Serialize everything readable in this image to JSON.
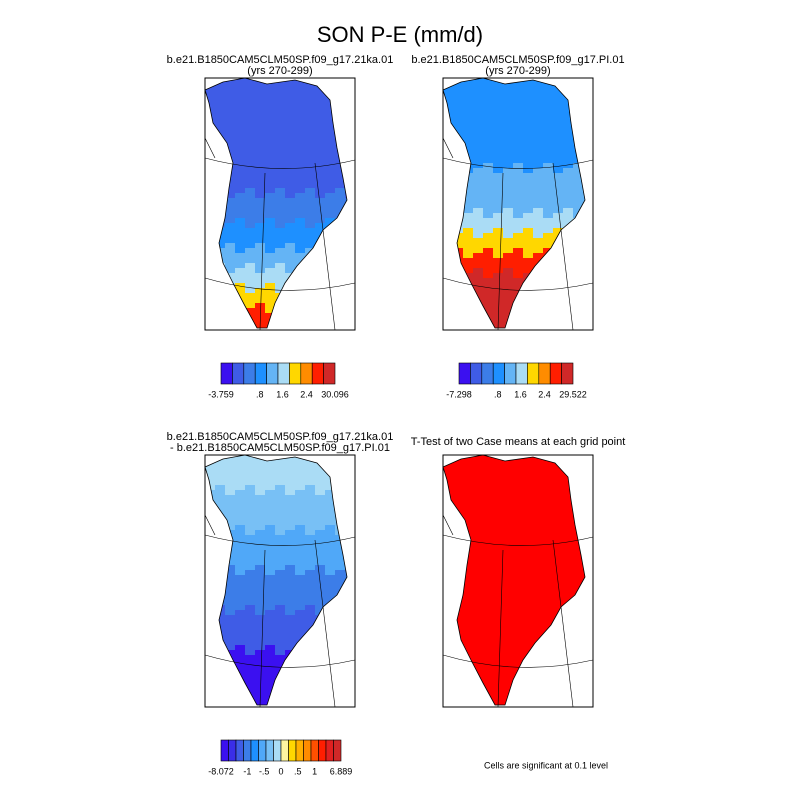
{
  "title": "SON P-E (mm/d)",
  "panels": [
    {
      "title": "b.e21.B1850CAM5CLM50SP.f09_g17.21ka.01",
      "subtitle": "(yrs 270-299)",
      "colorbar": {
        "colors": [
          "#3b10f0",
          "#3f5ce6",
          "#3c7de8",
          "#1e90ff",
          "#64b4f5",
          "#aadcf5",
          "#ffd700",
          "#ff8c00",
          "#ff1e00",
          "#d02828"
        ],
        "labels": [
          "-3.759",
          ".8",
          "1.6",
          "2.4",
          "30.096"
        ]
      }
    },
    {
      "title": "b.e21.B1850CAM5CLM50SP.f09_g17.PI.01",
      "subtitle": "(yrs 270-299)",
      "colorbar": {
        "colors": [
          "#3b10f0",
          "#3f5ce6",
          "#3c7de8",
          "#1e90ff",
          "#64b4f5",
          "#aadcf5",
          "#ffd700",
          "#ff8c00",
          "#ff1e00",
          "#d02828"
        ],
        "labels": [
          "-7.298",
          ".8",
          "1.6",
          "2.4",
          "29.522"
        ]
      }
    },
    {
      "title": "b.e21.B1850CAM5CLM50SP.f09_g17.21ka.01",
      "subtitle": "- b.e21.B1850CAM5CLM50SP.f09_g17.PI.01",
      "colorbar": {
        "colors": [
          "#3b10f0",
          "#3a2ee8",
          "#3f5ce6",
          "#3c7de8",
          "#1e90ff",
          "#50a8f8",
          "#78c0f5",
          "#aadcf5",
          "#fff5a0",
          "#ffd700",
          "#ffb000",
          "#ff8c00",
          "#ff5000",
          "#ff1e00",
          "#e02020",
          "#d02828"
        ],
        "labels": [
          "-8.072",
          "-1",
          "-.5",
          "0",
          ".5",
          "1",
          "6.889"
        ]
      }
    },
    {
      "title": "T-Test of two Case means at each grid point"
    }
  ],
  "note": "Cells are significant at 0.1 level"
}
